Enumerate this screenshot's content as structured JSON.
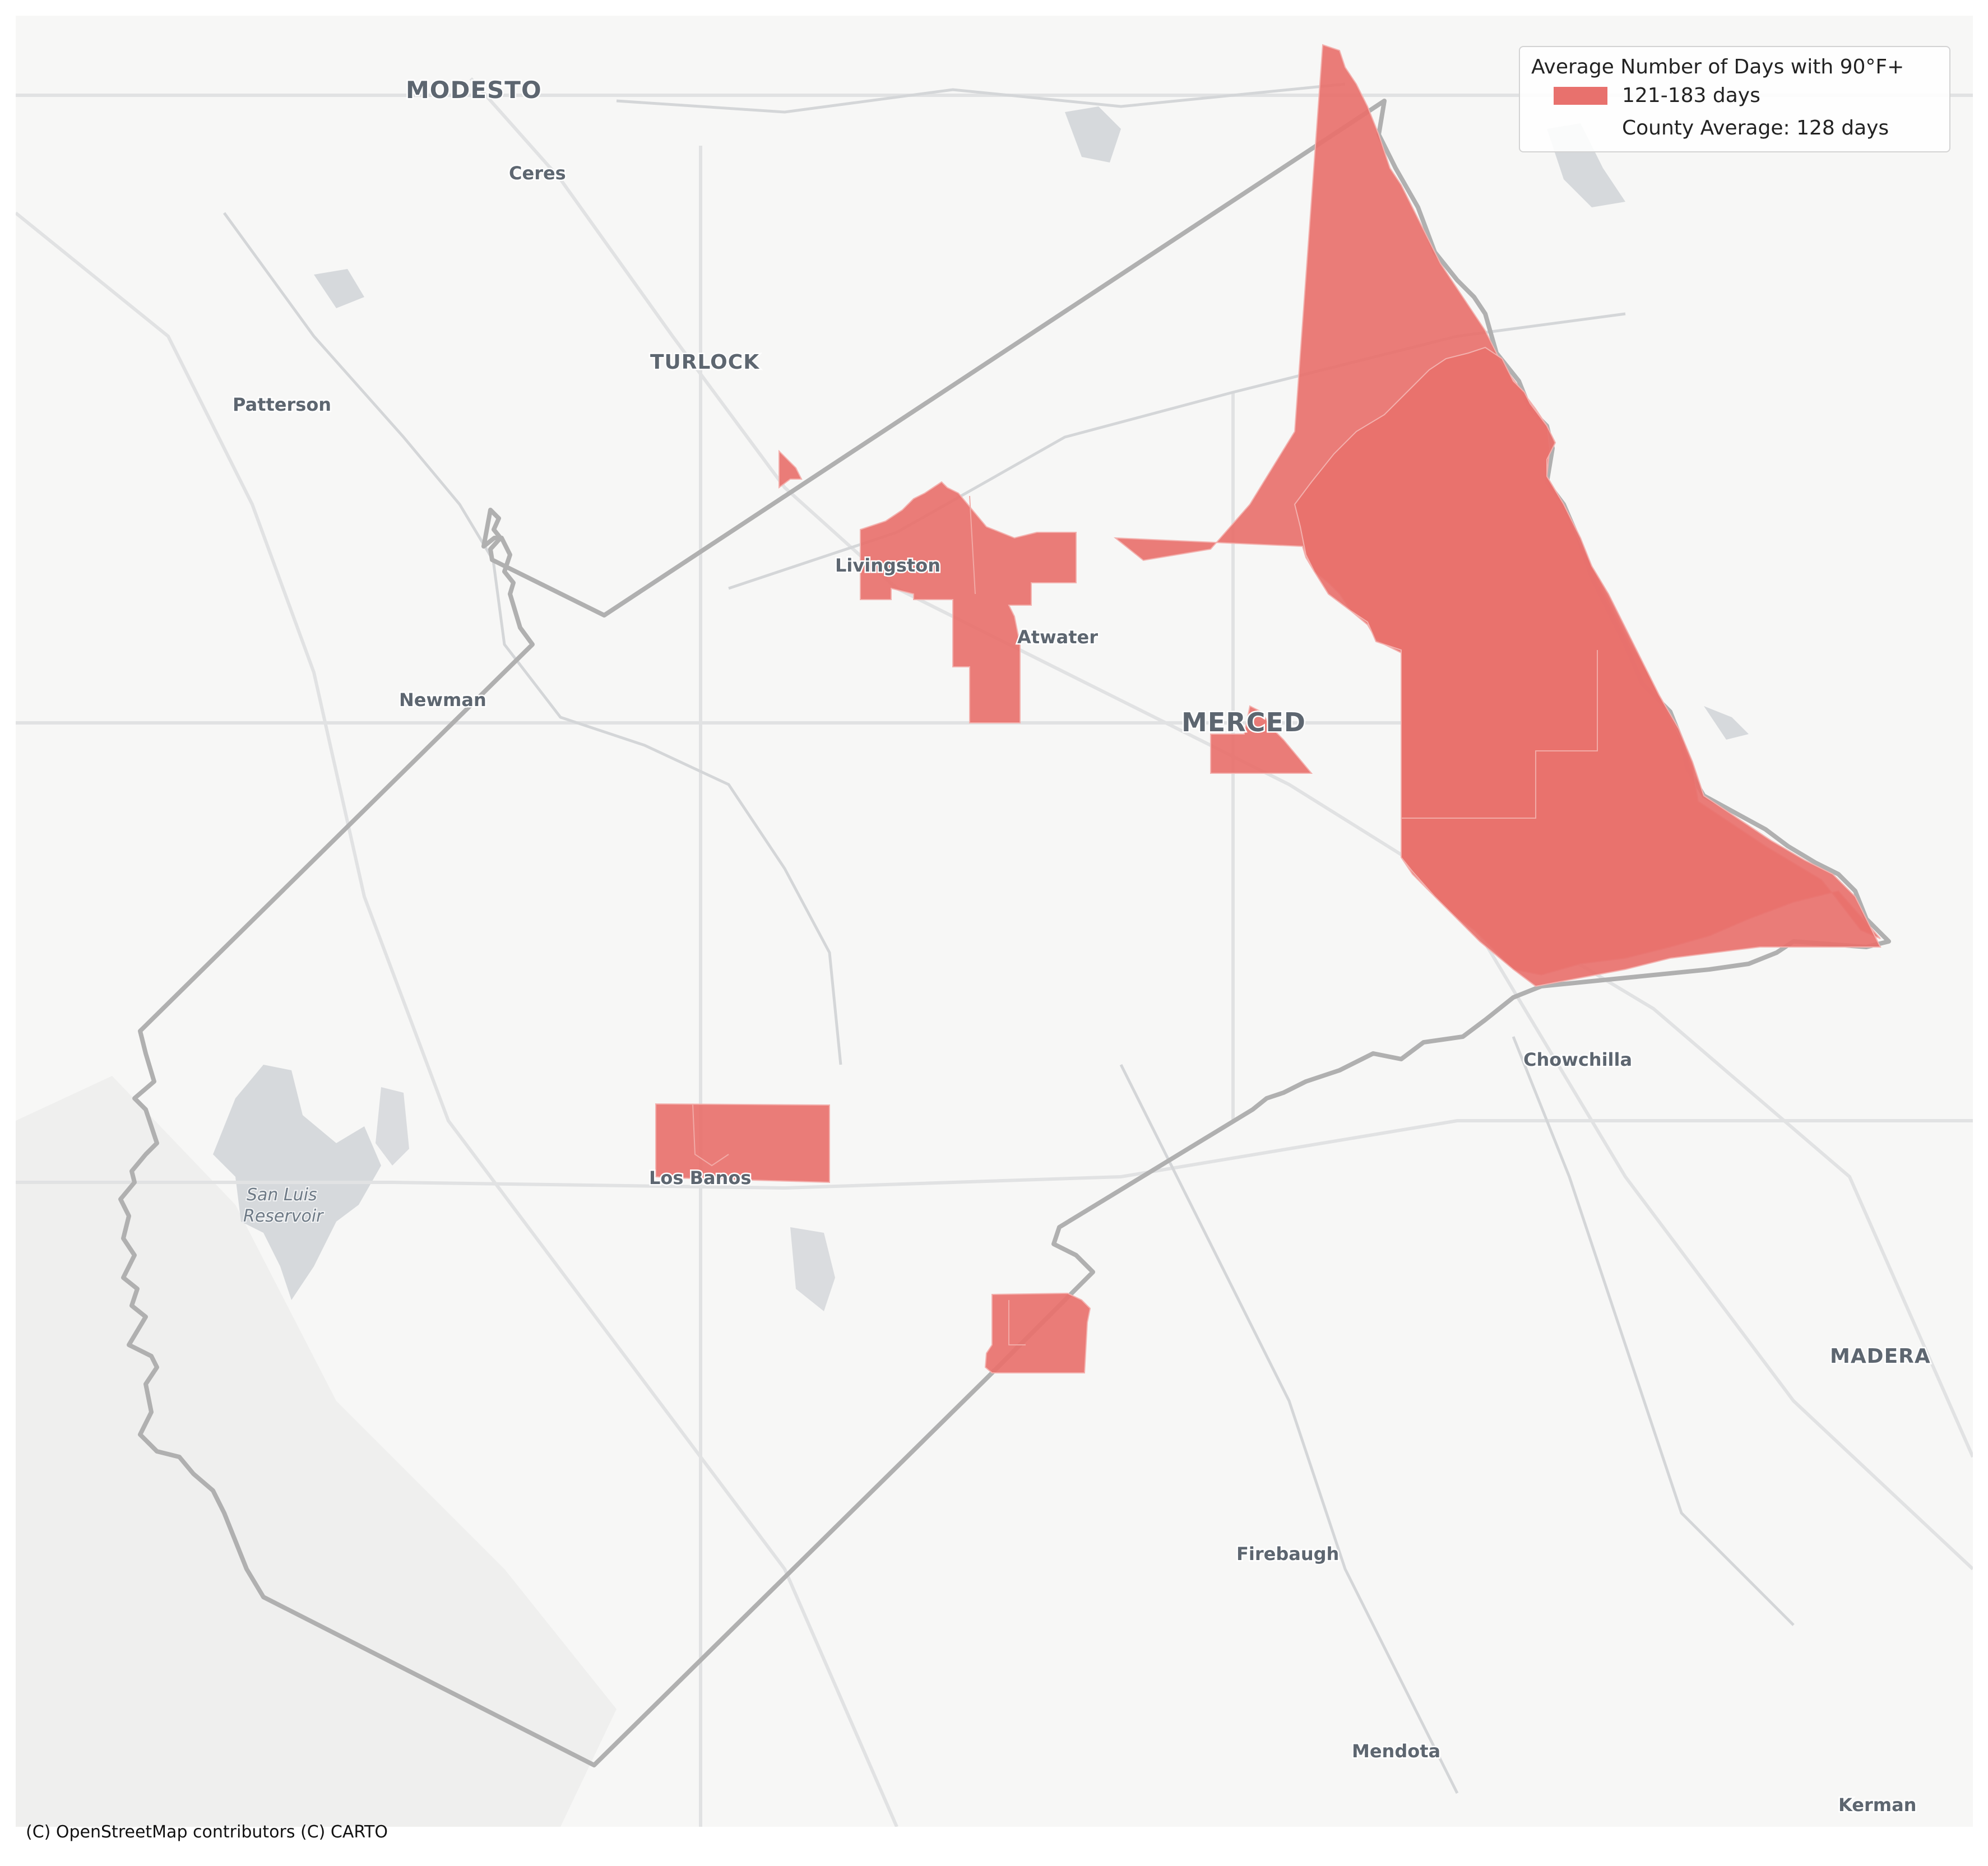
{
  "map": {
    "places_major": [
      "MODESTO",
      "TURLOCK",
      "MERCED",
      "MADERA"
    ],
    "places_minor": [
      "Ceres",
      "Patterson",
      "Livingston",
      "Atwater",
      "Newman",
      "Chowchilla",
      "Los Banos",
      "Firebaugh",
      "Mendota",
      "Kerman"
    ],
    "water": [
      "San Luis",
      "Reservoir"
    ],
    "region_color": "#e8716d",
    "boundary_color": "#b3b3b3",
    "basemap_color": "#f7f7f6"
  },
  "legend": {
    "title": "Average Number of Days with 90°F+",
    "category_label": "121-183 days",
    "category_color": "#e8716d",
    "county_average": "County Average: 128 days"
  },
  "attribution": "(C) OpenStreetMap contributors (C) CARTO"
}
